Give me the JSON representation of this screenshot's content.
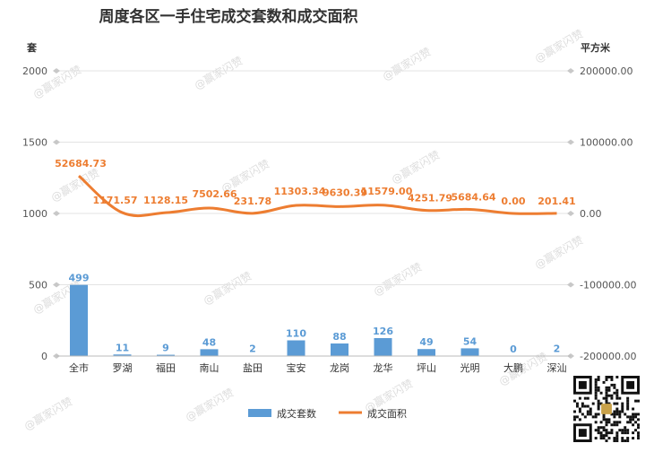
{
  "chart_data": {
    "type": "bar",
    "title": "周度各区一手住宅成交套数和成交面积",
    "categories": [
      "全市",
      "罗湖",
      "福田",
      "南山",
      "盐田",
      "宝安",
      "龙岗",
      "龙华",
      "坪山",
      "光明",
      "大鹏",
      "深汕"
    ],
    "series": [
      {
        "name": "成交套数",
        "type": "bar",
        "axis": "left",
        "color": "#5b9bd5",
        "values": [
          499,
          11,
          9,
          48,
          2,
          110,
          88,
          126,
          49,
          54,
          0,
          2
        ]
      },
      {
        "name": "成交面积",
        "type": "line",
        "axis": "right",
        "color": "#ed7d31",
        "values": [
          52684.73,
          1171.57,
          1128.15,
          7502.66,
          231.78,
          11303.34,
          9630.39,
          11579.0,
          4251.79,
          5684.64,
          0.0,
          201.41
        ],
        "labels": [
          "52684.73",
          "1171.57",
          "1128.15",
          "7502.66",
          "231.78",
          "11303.34",
          "9630.39",
          "11579.00",
          "4251.79",
          "5684.64",
          "0.00",
          "201.41"
        ]
      }
    ],
    "y_left": {
      "unit": "套",
      "ylim": [
        0,
        2000
      ],
      "ticks": [
        "0",
        "500",
        "1000",
        "1500",
        "2000"
      ]
    },
    "y_right": {
      "unit": "平方米",
      "ylim": [
        -200000,
        200000
      ],
      "ticks": [
        "-200000.00",
        "-100000.00",
        "0.00",
        "100000.00",
        "200000.00"
      ]
    },
    "grid": true,
    "legend": "bottom-center"
  },
  "watermark": "@赢家闪赞"
}
